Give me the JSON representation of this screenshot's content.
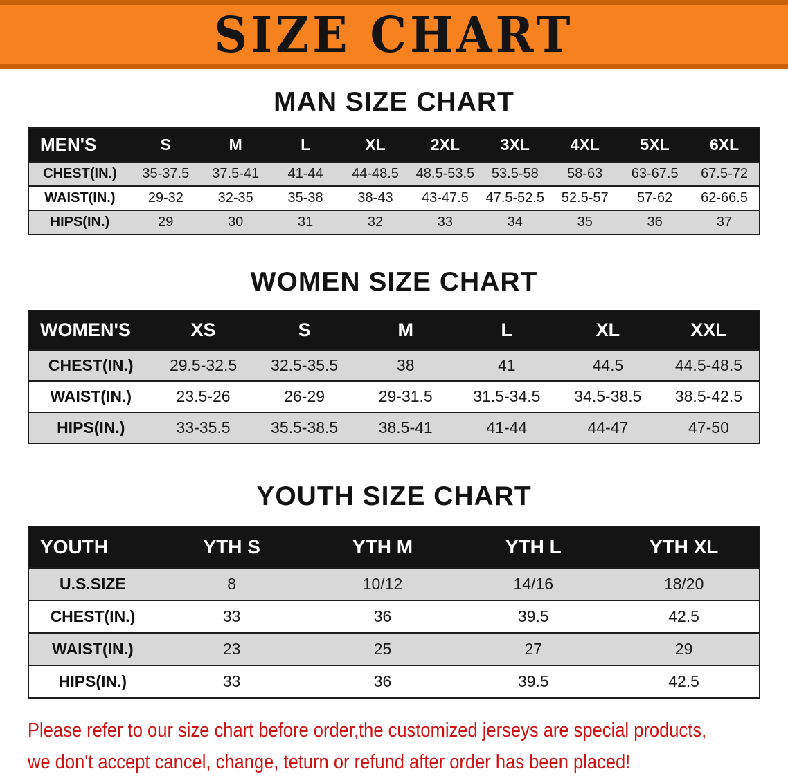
{
  "banner": {
    "title": "SIZE CHART"
  },
  "colors": {
    "banner_bg": "#F5821F",
    "banner_edge": "#C96007",
    "table_header_bg": "#141414",
    "table_header_text": "#FFFFFF",
    "row_shade": "#D8D8D8",
    "disclaimer_text": "#CC1212"
  },
  "chart_data": [
    {
      "type": "table",
      "title": "MAN SIZE CHART",
      "columns": [
        "MEN'S",
        "S",
        "M",
        "L",
        "XL",
        "2XL",
        "3XL",
        "4XL",
        "5XL",
        "6XL"
      ],
      "rows": [
        [
          "CHEST(IN.)",
          "35-37.5",
          "37.5-41",
          "41-44",
          "44-48.5",
          "48.5-53.5",
          "53.5-58",
          "58-63",
          "63-67.5",
          "67.5-72"
        ],
        [
          "WAIST(IN.)",
          "29-32",
          "32-35",
          "35-38",
          "38-43",
          "43-47.5",
          "47.5-52.5",
          "52.5-57",
          "57-62",
          "62-66.5"
        ],
        [
          "HIPS(IN.)",
          "29",
          "30",
          "31",
          "32",
          "33",
          "34",
          "35",
          "36",
          "37"
        ]
      ]
    },
    {
      "type": "table",
      "title": "WOMEN SIZE CHART",
      "columns": [
        "WOMEN'S",
        "XS",
        "S",
        "M",
        "L",
        "XL",
        "XXL"
      ],
      "rows": [
        [
          "CHEST(IN.)",
          "29.5-32.5",
          "32.5-35.5",
          "38",
          "41",
          "44.5",
          "44.5-48.5"
        ],
        [
          "WAIST(IN.)",
          "23.5-26",
          "26-29",
          "29-31.5",
          "31.5-34.5",
          "34.5-38.5",
          "38.5-42.5"
        ],
        [
          "HIPS(IN.)",
          "33-35.5",
          "35.5-38.5",
          "38.5-41",
          "41-44",
          "44-47",
          "47-50"
        ]
      ]
    },
    {
      "type": "table",
      "title": "YOUTH SIZE CHART",
      "columns": [
        "YOUTH",
        "YTH S",
        "YTH M",
        "YTH L",
        "YTH XL"
      ],
      "rows": [
        [
          "U.S.SIZE",
          "8",
          "10/12",
          "14/16",
          "18/20"
        ],
        [
          "CHEST(IN.)",
          "33",
          "36",
          "39.5",
          "42.5"
        ],
        [
          "WAIST(IN.)",
          "23",
          "25",
          "27",
          "29"
        ],
        [
          "HIPS(IN.)",
          "33",
          "36",
          "39.5",
          "42.5"
        ]
      ]
    }
  ],
  "disclaimer": {
    "line1": "Please refer to our size chart before order,the customized jerseys are special products,",
    "line2": "we don't accept cancel, change, teturn or refund after order has been placed!"
  }
}
